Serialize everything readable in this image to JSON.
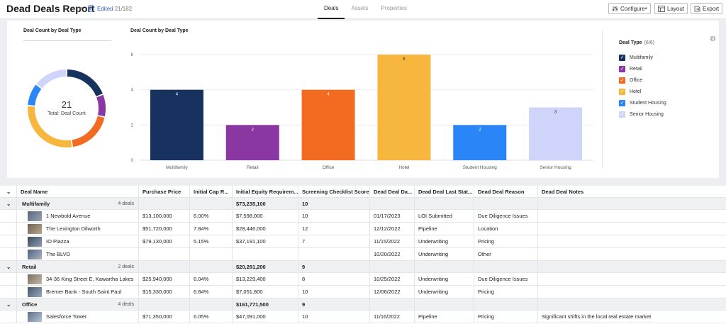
{
  "header": {
    "title": "Dead Deals Report",
    "edited_label": "Edited",
    "edited_count": "21/182",
    "tabs": [
      "Deals",
      "Assets",
      "Properties"
    ],
    "configure_label": "Configure",
    "layout_label": "Layout",
    "export_label": "Export"
  },
  "donut": {
    "title": "Deal Count by Deal Type",
    "total": "21",
    "total_label": "Total: Deal Count"
  },
  "chart_data": {
    "type": "bar",
    "title": "Deal Count by Deal Type",
    "categories": [
      "Multifamily",
      "Retail",
      "Office",
      "Hotel",
      "Student Housing",
      "Senior Housing"
    ],
    "values": [
      4,
      2,
      4,
      6,
      2,
      3
    ],
    "colors": [
      "#17325e",
      "#8a37a3",
      "#f26b21",
      "#f7b73e",
      "#2a86f7",
      "#cfd5fa"
    ],
    "yticks": [
      0,
      2,
      4,
      6
    ],
    "ylim": [
      0,
      6
    ],
    "grid": true
  },
  "legend": {
    "title": "Deal Type",
    "count": "(6/6)",
    "items": [
      "Multifamily",
      "Retail",
      "Office",
      "Hotel",
      "Student Housing",
      "Senior Housing"
    ]
  },
  "table": {
    "columns": [
      "Deal Name",
      "Purchase Price",
      "Initial Cap R...",
      "Initial Equity Requirem...",
      "Screening Checklist Score",
      "Dead Deal Da...",
      "Dead Deal Last Stat...",
      "Dead Deal Reason",
      "Dead Deal Notes"
    ],
    "rows": [
      {
        "kind": "group",
        "name": "Multifamily",
        "count": "4 deals",
        "equity": "$73,235,100",
        "score": "10"
      },
      {
        "kind": "deal",
        "name": "1 Newbold Avenue",
        "price": "$13,100,000",
        "cap": "6.00%",
        "equity": "$7,598,000",
        "score": "10",
        "date": "01/17/2023",
        "status": "LOI Submitted",
        "reason": "Due Diligence Issues",
        "notes": ""
      },
      {
        "kind": "deal",
        "name": "The Lexington Dilworth",
        "price": "$51,720,000",
        "cap": "7.84%",
        "equity": "$28,446,000",
        "score": "12",
        "date": "12/12/2022",
        "status": "Pipeline",
        "reason": "Location",
        "notes": ""
      },
      {
        "kind": "deal",
        "name": "IO Piazza",
        "price": "$79,130,000",
        "cap": "5.15%",
        "equity": "$37,191,100",
        "score": "7",
        "date": "11/15/2022",
        "status": "Underwriting",
        "reason": "Pricing",
        "notes": ""
      },
      {
        "kind": "deal",
        "name": "The BLVD",
        "price": "",
        "cap": "",
        "equity": "",
        "score": "",
        "date": "10/20/2022",
        "status": "Underwriting",
        "reason": "Other",
        "notes": ""
      },
      {
        "kind": "group",
        "name": "Retail",
        "count": "2 deals",
        "equity": "$20,281,200",
        "score": "9"
      },
      {
        "kind": "deal",
        "name": "34-36 King Street E, Kawartha Lakes",
        "price": "$25,940,000",
        "cap": "6.04%",
        "equity": "$13,229,400",
        "score": "8",
        "date": "10/25/2022",
        "status": "Underwriting",
        "reason": "Due Diligence Issues",
        "notes": ""
      },
      {
        "kind": "deal",
        "name": "Bremer Bank - South Saint Paul",
        "price": "$15,330,000",
        "cap": "6.84%",
        "equity": "$7,051,800",
        "score": "10",
        "date": "12/06/2022",
        "status": "Underwriting",
        "reason": "Pricing",
        "notes": ""
      },
      {
        "kind": "group",
        "name": "Office",
        "count": "4 deals",
        "equity": "$161,771,500",
        "score": "9"
      },
      {
        "kind": "deal",
        "name": "Salesforce Tower",
        "price": "$71,350,000",
        "cap": "6.05%",
        "equity": "$47,091,000",
        "score": "10",
        "date": "11/16/2022",
        "status": "Pipeline",
        "reason": "Pricing",
        "notes": "Significant shifts in the local real estate market"
      }
    ]
  }
}
